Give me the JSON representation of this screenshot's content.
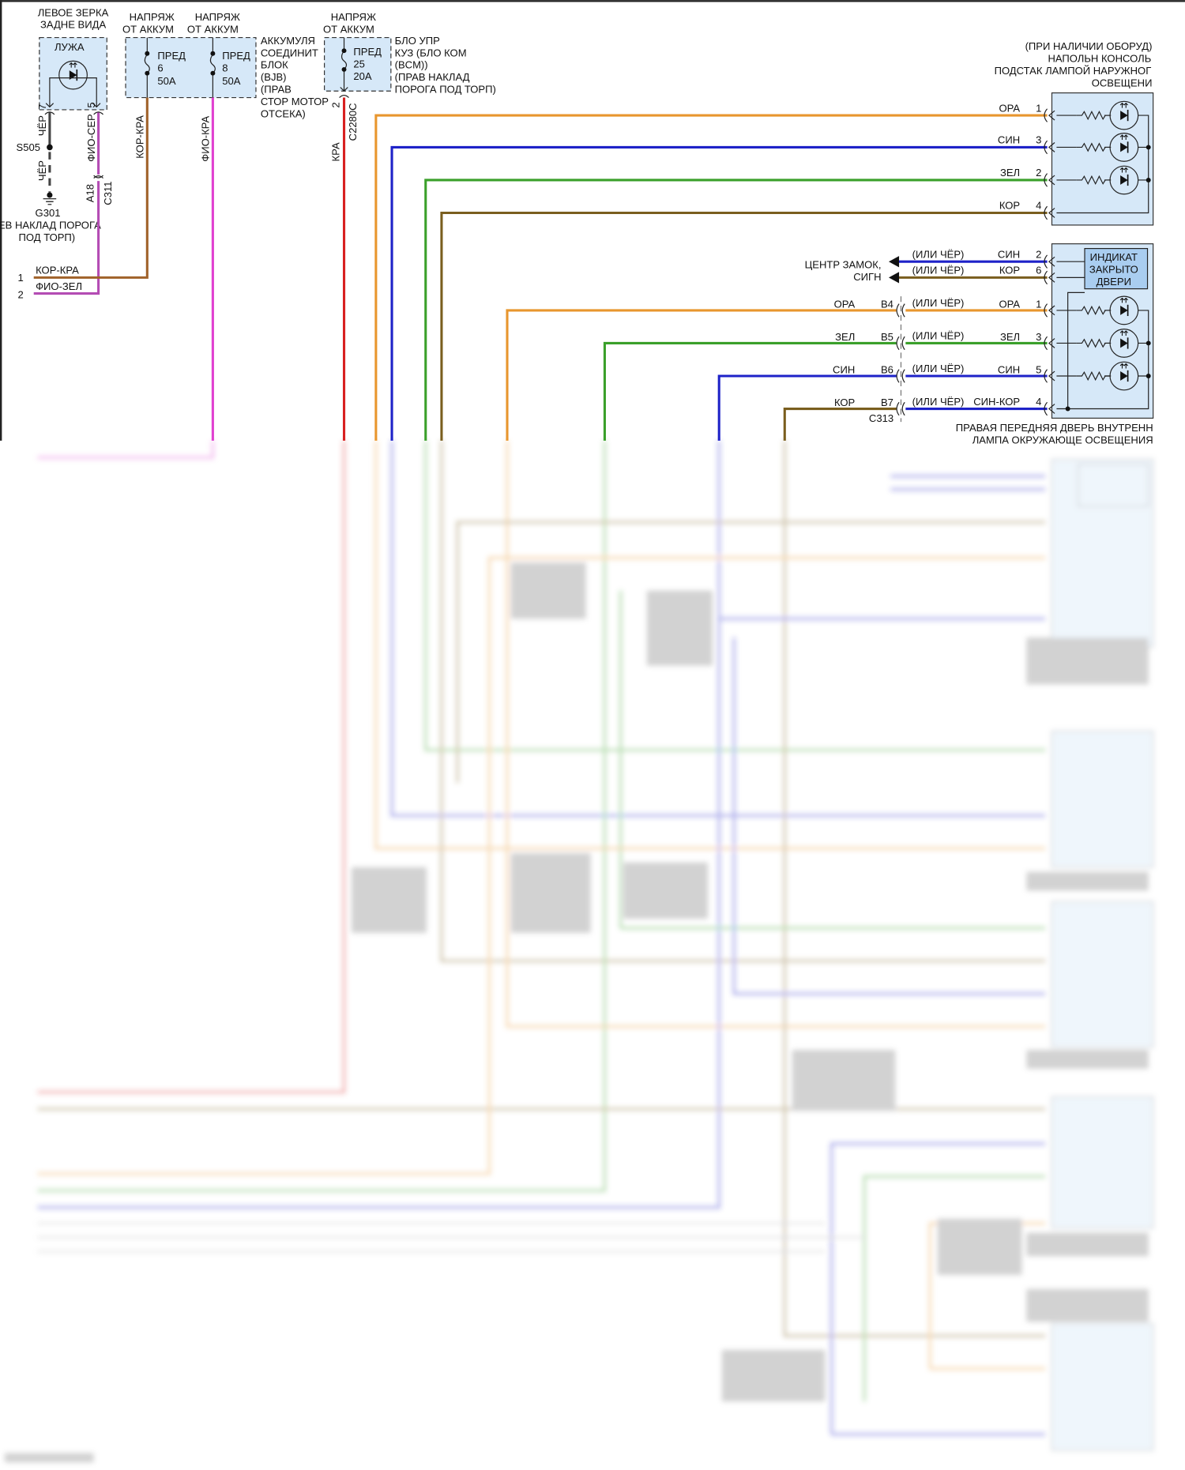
{
  "colors": {
    "orange": "#e8962e",
    "blue": "#1e22c8",
    "green": "#3aa02a",
    "olive": "#7a5e1e",
    "brown": "#a0622a",
    "magenta": "#e040d0",
    "violet": "#b44cb4",
    "red": "#d82020",
    "black": "#444444",
    "component_fill": "#d6e8f8"
  },
  "mirror": {
    "title_1": "ЛЕВОЕ ЗЕРКА",
    "title_2": "ЗАДНЕ ВИДА",
    "lamp": "ЛУЖА",
    "pin_a": "7",
    "wire_a": "ЧЁР",
    "splice": "S505",
    "wire_ground": "ЧЁР",
    "ground": "G301",
    "ground_loc_1": "ЕВ НАКЛАД ПОРОГА",
    "ground_loc_2": "ПОД ТОРП)",
    "pin_b": "5",
    "wire_b": "ФИО-СЕР",
    "conn_pin": "A18",
    "conn": "C311"
  },
  "left_connector": {
    "pin_1": "1",
    "wire_1": "КОР-КРА",
    "pin_2": "2",
    "wire_2": "ФИО-ЗЕЛ"
  },
  "bjb": {
    "supply_1": [
      "НАПРЯЖ",
      "ОТ АККУМ"
    ],
    "supply_2": [
      "НАПРЯЖ",
      "ОТ АККУМ"
    ],
    "fuse_1": [
      "ПРЕД",
      "6",
      "50A"
    ],
    "fuse_2": [
      "ПРЕД",
      "8",
      "50A"
    ],
    "label": [
      "АККУМУЛЯ",
      "СОЕДИНИТ",
      "БЛОК",
      "(BJB)",
      "(ПРАВ",
      "СТОР МОТОР",
      "ОТСЕКА)"
    ],
    "wire_1": "КОР-КРА",
    "wire_2": "ФИО-КРА"
  },
  "bcm": {
    "supply": [
      "НАПРЯЖ",
      "ОТ АККУМ"
    ],
    "fuse": [
      "ПРЕД",
      "25",
      "20A"
    ],
    "label": [
      "БЛО УПР",
      "КУЗ (БЛО КОМ",
      "(BCM))",
      "(ПРАВ НАКЛАД",
      "ПОРОГА ПОД ТОРП)"
    ],
    "pin": "2",
    "conn": "C2280C",
    "wire": "КРА"
  },
  "console_lamp": {
    "label": [
      "(ПРИ НАЛИЧИИ ОБОРУД)",
      "НАПОЛЬН КОНСОЛЬ",
      "ПОДСТАК ЛАМПОЙ НАРУЖНОГ",
      "ОСВЕЩЕНИ"
    ],
    "pins": [
      {
        "wire": "ОРА",
        "pin": "1"
      },
      {
        "wire": "СИН",
        "pin": "3"
      },
      {
        "wire": "ЗЕЛ",
        "pin": "2"
      },
      {
        "wire": "КОР",
        "pin": "4"
      }
    ]
  },
  "door_lamp": {
    "indicator": [
      "ИНДИКАТ",
      "ЗАКРЫТО",
      "ДВЕРИ"
    ],
    "destination": [
      "ЦЕНТР ЗАМОК,",
      "СИГН"
    ],
    "alt": "(ИЛИ ЧЁР)",
    "signal_pins": [
      {
        "wire": "СИН",
        "pin": "2"
      },
      {
        "wire": "КОР",
        "pin": "6"
      }
    ],
    "pins": [
      {
        "wire_left": "ОРА",
        "conn_pin": "B4",
        "wire_right": "ОРА",
        "pin": "1"
      },
      {
        "wire_left": "ЗЕЛ",
        "conn_pin": "B5",
        "wire_right": "ЗЕЛ",
        "pin": "3"
      },
      {
        "wire_left": "СИН",
        "conn_pin": "B6",
        "wire_right": "СИН",
        "pin": "5"
      },
      {
        "wire_left": "КОР",
        "conn_pin": "B7",
        "wire_right": "СИН-КОР",
        "pin": "4"
      }
    ],
    "conn": "C313",
    "label": [
      "ПРАВАЯ ПЕРЕДНЯЯ ДВЕРЬ ВНУТРЕНН",
      "ЛАМПА ОКРУЖАЮЩЕ ОСВЕЩЕНИЯ"
    ]
  }
}
